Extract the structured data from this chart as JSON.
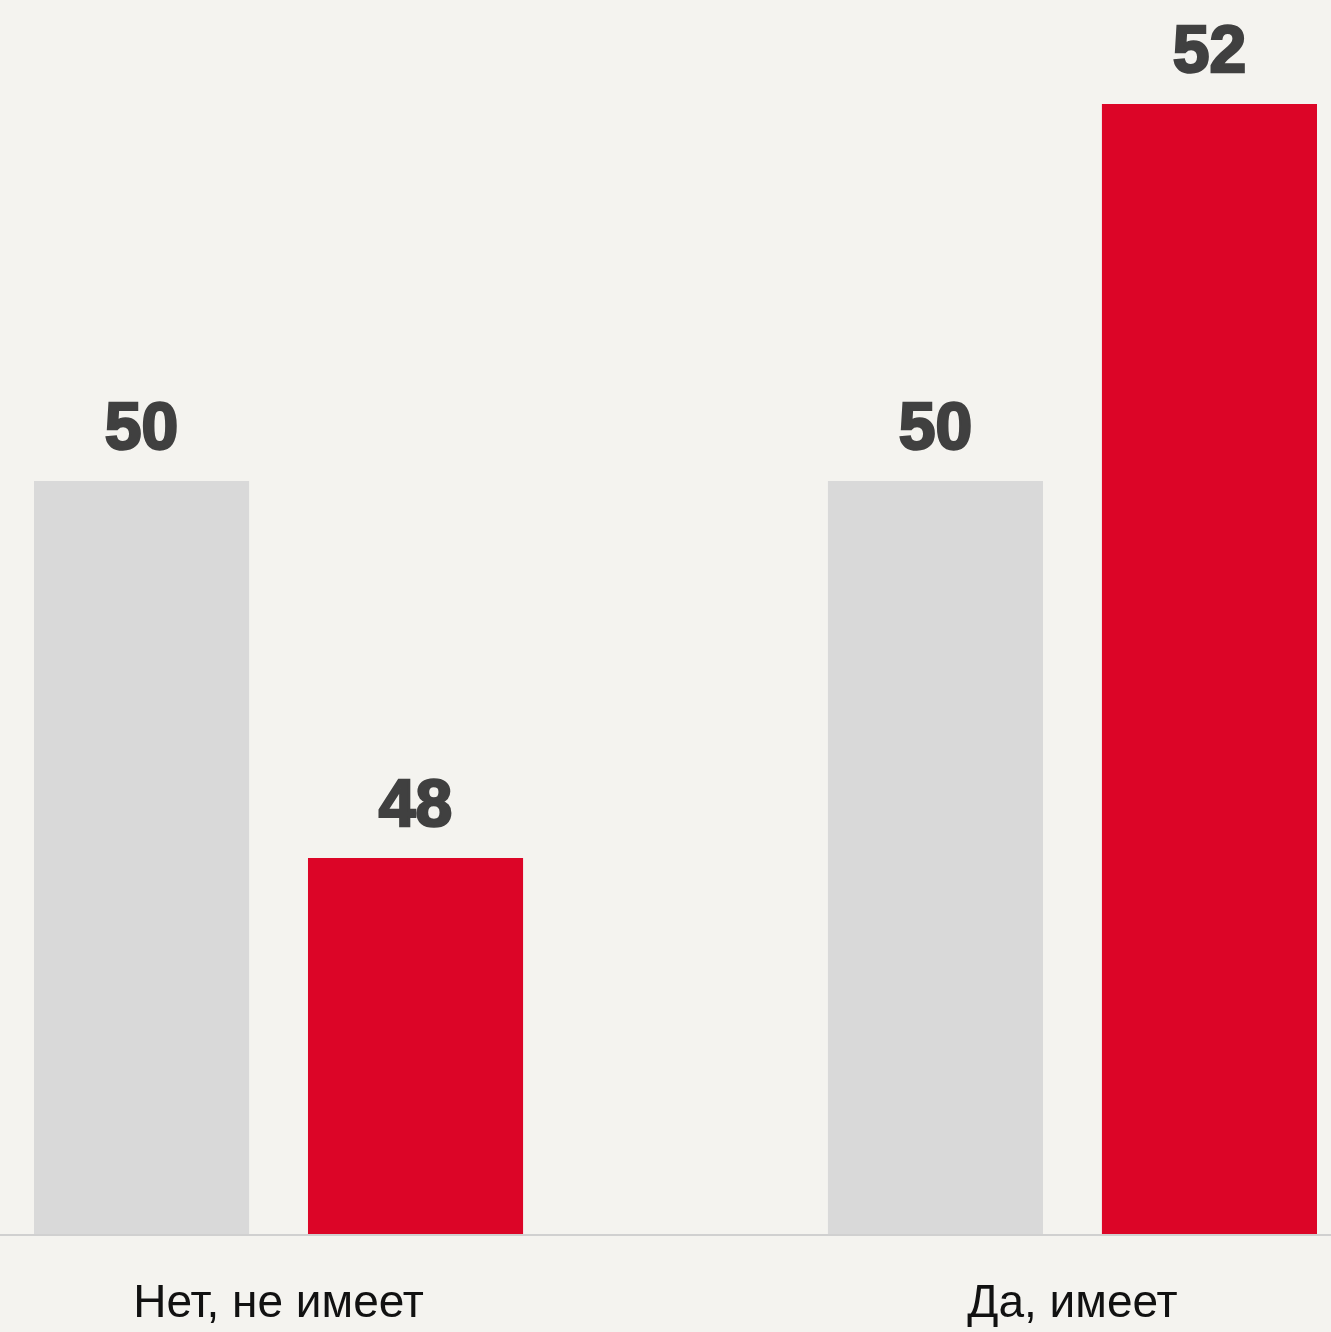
{
  "chart_data": {
    "type": "bar",
    "categories": [
      "Нет, не имеет",
      "Да, имеет"
    ],
    "series": [
      {
        "color": "#d9d9d9",
        "values": [
          50,
          50
        ]
      },
      {
        "color": "#dc0527",
        "values": [
          48,
          52
        ]
      }
    ],
    "ylim": [
      46,
      52
    ],
    "data_labels": true
  }
}
